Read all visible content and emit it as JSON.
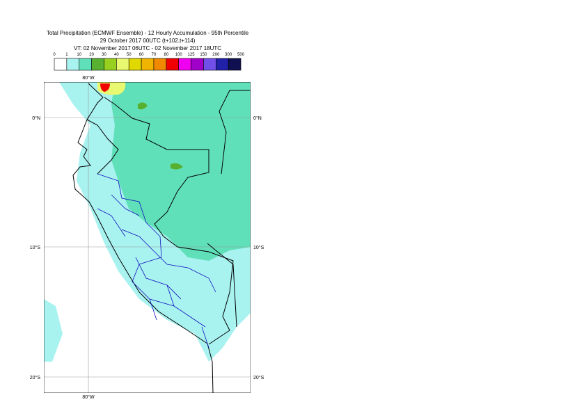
{
  "header": {
    "title": "Total Precipitation (ECMWF Ensemble) - 12 Hourly Accumulation - 95th Percentile",
    "subtitle": "29 October 2017 00UTC (t+102,t+114)",
    "valid_time": "VT: 02 November 2017 06UTC - 02 November 2017 18UTC"
  },
  "legend": {
    "thresholds": [
      "0",
      "1",
      "10",
      "20",
      "30",
      "40",
      "50",
      "60",
      "70",
      "80",
      "100",
      "125",
      "150",
      "200",
      "300",
      "500"
    ],
    "colors": [
      "#ffffff",
      "#a8f2f0",
      "#60e0b8",
      "#58b030",
      "#98d020",
      "#e8f870",
      "#e0d800",
      "#f0b400",
      "#f08800",
      "#f00000",
      "#f000f0",
      "#a000c8",
      "#7050e8",
      "#2020a8",
      "#101050"
    ]
  },
  "map": {
    "lon_labels": [
      "80°W",
      "80°W"
    ],
    "lat_labels": [
      "0°N",
      "10°S",
      "20°S"
    ]
  }
}
